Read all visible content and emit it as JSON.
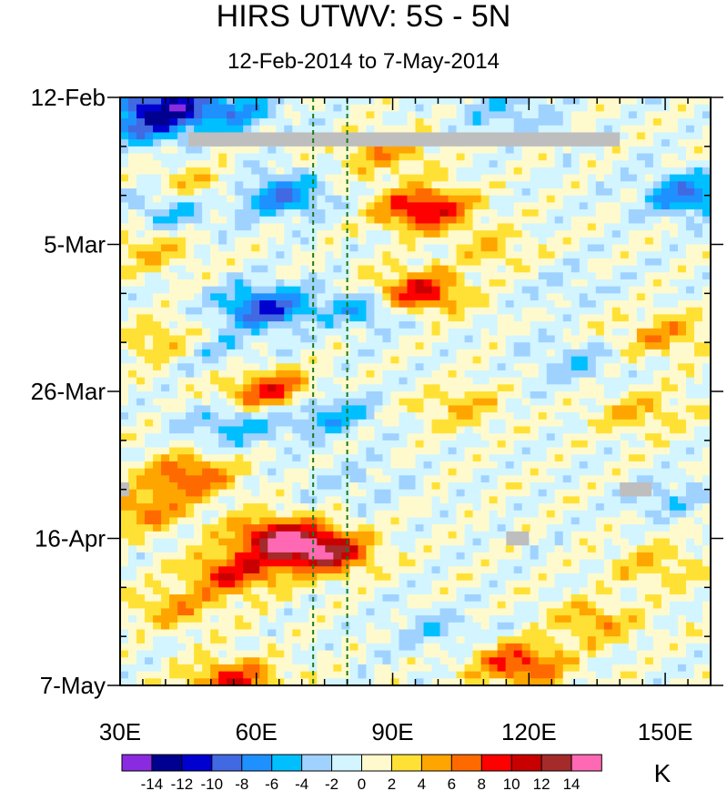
{
  "chart_data": {
    "type": "heatmap",
    "title": "HIRS UTWV: 5S - 5N",
    "subtitle": "12-Feb-2014 to 7-May-2014",
    "x_axis": {
      "range": [
        30,
        160
      ],
      "tick_values": [
        30,
        60,
        90,
        120,
        150
      ],
      "tick_labels": [
        "30E",
        "60E",
        "90E",
        "120E",
        "150E"
      ],
      "reference_lines": [
        72.5,
        80
      ]
    },
    "y_axis": {
      "range_days_since_start": [
        0,
        84
      ],
      "tick_days": [
        0,
        21,
        42,
        63,
        84
      ],
      "tick_labels": [
        "12-Feb",
        "5-Mar",
        "26-Mar",
        "16-Apr",
        "7-May"
      ],
      "orientation": "time increases downward"
    },
    "colorbar": {
      "unit": "K",
      "levels": [
        -14,
        -12,
        -10,
        -8,
        -6,
        -4,
        -2,
        0,
        2,
        4,
        6,
        8,
        10,
        12,
        14
      ],
      "tick_labels": [
        "-14",
        "-12",
        "-10",
        "-8",
        "-6",
        "-4",
        "-2",
        "0",
        "2",
        "4",
        "6",
        "8",
        "10",
        "12",
        "14"
      ],
      "colors": [
        "#8a2be2",
        "#000090",
        "#0000d0",
        "#4169e1",
        "#1e90ff",
        "#00bfff",
        "#a0d2ff",
        "#d2f5ff",
        "#fffacd",
        "#ffe135",
        "#ffa500",
        "#ff6a00",
        "#ff0000",
        "#c80000",
        "#a52a2a",
        "#ff69b4"
      ]
    },
    "missing_data_color": "#bebebe",
    "anomaly_features": [
      {
        "lon": 47,
        "day": 13,
        "value": 4
      },
      {
        "lon": 88,
        "day": 8,
        "value": 5
      },
      {
        "lon": 97,
        "day": 16,
        "value": 11
      },
      {
        "lon": 95,
        "day": 28,
        "value": 11
      },
      {
        "lon": 37,
        "day": 22,
        "value": 4
      },
      {
        "lon": 63,
        "day": 42,
        "value": 9
      },
      {
        "lon": 40,
        "day": 35,
        "value": 5
      },
      {
        "lon": 45,
        "day": 54,
        "value": 8
      },
      {
        "lon": 35,
        "day": 59,
        "value": 6
      },
      {
        "lon": 65,
        "day": 63,
        "value": 12
      },
      {
        "lon": 75,
        "day": 65,
        "value": 12
      },
      {
        "lon": 55,
        "day": 68,
        "value": 9
      },
      {
        "lon": 42,
        "day": 73,
        "value": 5
      },
      {
        "lon": 118,
        "day": 81,
        "value": 9
      },
      {
        "lon": 135,
        "day": 75,
        "value": 5
      },
      {
        "lon": 148,
        "day": 67,
        "value": 4
      },
      {
        "lon": 145,
        "day": 45,
        "value": 4
      },
      {
        "lon": 150,
        "day": 34,
        "value": 5
      },
      {
        "lon": 105,
        "day": 44,
        "value": 4
      },
      {
        "lon": 55,
        "day": 83.5,
        "value": 9
      },
      {
        "lon": 40,
        "day": 1,
        "value": -10
      },
      {
        "lon": 36,
        "day": 4,
        "value": -7
      },
      {
        "lon": 55,
        "day": 2,
        "value": -6
      },
      {
        "lon": 65,
        "day": 14,
        "value": -8
      },
      {
        "lon": 62,
        "day": 30,
        "value": -10
      },
      {
        "lon": 85,
        "day": 30,
        "value": -6
      },
      {
        "lon": 42,
        "day": 16,
        "value": -5
      },
      {
        "lon": 75,
        "day": 45,
        "value": -6
      },
      {
        "lon": 55,
        "day": 47,
        "value": -5
      },
      {
        "lon": 50,
        "day": 36,
        "value": -4
      },
      {
        "lon": 130,
        "day": 38,
        "value": -3
      },
      {
        "lon": 155,
        "day": 14,
        "value": -8
      },
      {
        "lon": 115,
        "day": 2,
        "value": -4
      },
      {
        "lon": 150,
        "day": 57,
        "value": -3
      },
      {
        "lon": 100,
        "day": 76,
        "value": -3
      },
      {
        "lon": 112,
        "day": 22,
        "value": 3
      },
      {
        "lon": 128,
        "day": 27,
        "value": -2
      },
      {
        "lon": 82,
        "day": 55,
        "value": -2
      }
    ],
    "missing_regions": [
      {
        "lon_from": 45,
        "lon_to": 140,
        "day_from": 5,
        "day_to": 7
      },
      {
        "lon_from": 30,
        "lon_to": 32,
        "day_from": 55,
        "day_to": 57
      },
      {
        "lon_from": 140,
        "lon_to": 147,
        "day_from": 55,
        "day_to": 57
      },
      {
        "lon_from": 115,
        "lon_to": 120,
        "day_from": 62,
        "day_to": 64
      }
    ]
  }
}
